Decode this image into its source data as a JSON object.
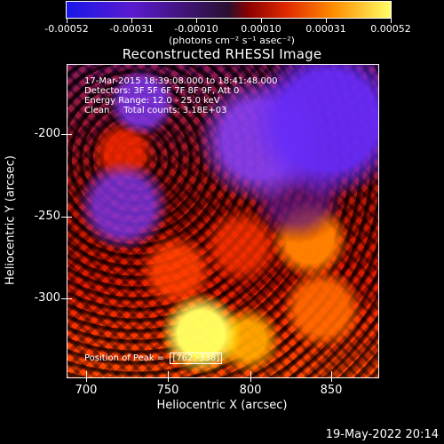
{
  "colorbar": {
    "ticks": [
      "-0.00052",
      "-0.00031",
      "-0.00010",
      "0.00010",
      "0.00031",
      "0.00052"
    ],
    "unit": "(photons cm⁻² s⁻¹ asec⁻²)"
  },
  "title": "Reconstructed RHESSI Image",
  "overlay": {
    "line1": "17-Mar-2015 18:39:08.000 to 18:41:48.000",
    "line2": "Detectors: 3F 5F 6F 7F 8F 9F, Att 0",
    "line3": "Energy Range: 12.0 - 25.0 keV",
    "line4": "Clean     Total counts: 3.18E+03",
    "peak_label": "Position of Peak =",
    "peak_value": "[762,-338]"
  },
  "axes": {
    "x_title": "Heliocentric X (arcsec)",
    "y_title": "Heliocentric Y (arcsec)",
    "x_ticks": [
      "700",
      "750",
      "800",
      "850"
    ],
    "y_ticks": [
      "-200",
      "-250",
      "-300"
    ]
  },
  "timestamp": "19-May-2022 20:14"
}
